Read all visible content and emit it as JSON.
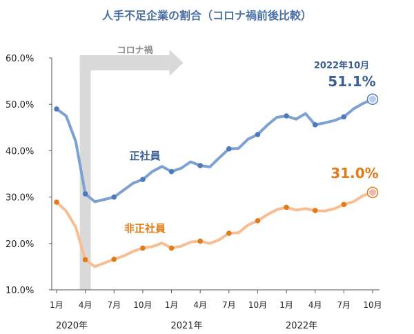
{
  "chart_data": {
    "type": "line",
    "title": "人手不足企業の割合（コロナ禍前後比較）",
    "ylim": [
      10,
      60
    ],
    "y_ticks": [
      "10.0%",
      "20.0%",
      "30.0%",
      "40.0%",
      "50.0%",
      "60.0%"
    ],
    "y_tick_values": [
      10,
      20,
      30,
      40,
      50,
      60
    ],
    "x_tick_labels": [
      "1月",
      "4月",
      "7月",
      "10月",
      "1月",
      "4月",
      "7月",
      "10月",
      "1月",
      "4月",
      "7月",
      "10月"
    ],
    "x_tick_index": [
      0,
      3,
      6,
      9,
      12,
      15,
      18,
      21,
      24,
      27,
      30,
      33
    ],
    "years": [
      {
        "label": "2020年",
        "index": 0
      },
      {
        "label": "2021年",
        "index": 12
      },
      {
        "label": "2022年",
        "index": 24
      }
    ],
    "corona_band": {
      "start_index": 3,
      "label": "コロナ禍"
    },
    "series": [
      {
        "name": "正社員",
        "color": "#7ea1d4",
        "marker_color": "#4f79bd",
        "values": [
          49.0,
          47.5,
          42.0,
          30.7,
          29.0,
          29.5,
          30.0,
          31.5,
          33.0,
          33.8,
          35.5,
          36.6,
          35.5,
          36.2,
          37.6,
          36.8,
          36.5,
          38.5,
          40.4,
          40.5,
          42.5,
          43.5,
          45.5,
          47.2,
          47.5,
          46.8,
          48.0,
          45.6,
          46.0,
          46.5,
          47.3,
          49.0,
          50.2,
          51.1
        ],
        "markers": [
          0,
          3,
          6,
          9,
          12,
          15,
          18,
          21,
          24,
          27,
          30
        ]
      },
      {
        "name": "非正社員",
        "color": "#f6be92",
        "marker_color": "#e07b1a",
        "values": [
          28.9,
          27.0,
          23.5,
          16.5,
          15.0,
          15.8,
          16.6,
          17.3,
          18.3,
          19.0,
          19.3,
          20.1,
          19.0,
          19.4,
          20.3,
          20.5,
          20.0,
          20.8,
          22.2,
          22.3,
          24.0,
          24.9,
          26.2,
          27.3,
          27.8,
          27.2,
          27.5,
          27.1,
          27.0,
          27.5,
          28.4,
          29.0,
          30.3,
          31.0
        ],
        "markers": [
          0,
          3,
          6,
          9,
          12,
          15,
          18,
          21,
          24,
          27,
          30
        ]
      }
    ],
    "annotations": {
      "blue_date": "2022年10月",
      "blue_last": "51.1%",
      "orange_last": "31.0%"
    }
  }
}
